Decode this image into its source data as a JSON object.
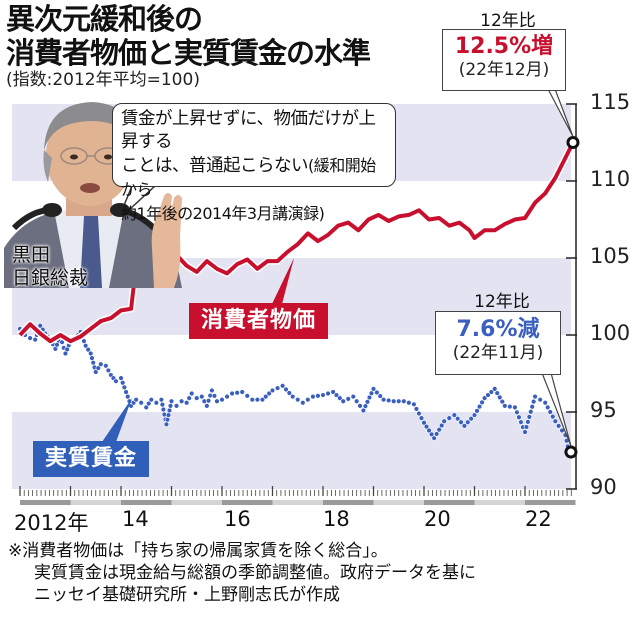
{
  "header": {
    "title_line1": "異次元緩和後の",
    "title_line2": "消費者物価と実質賃金の水準",
    "subtitle": "(指数:2012年平均=100)"
  },
  "quote": {
    "line1": "賃金が上昇せずに、物価だけが上昇する",
    "line2a": "ことは、普通起こらない",
    "line2b": "(緩和開始から",
    "line3": "約1年後の2014年3月講演録)"
  },
  "person": {
    "line1": "黒田",
    "line2": "日銀総裁"
  },
  "cpi_callout": {
    "caption": "12年比",
    "value": "12.5%増",
    "date": "(22年12月)"
  },
  "wage_callout": {
    "caption": "12年比",
    "value": "7.6%減",
    "date": "(22年11月)"
  },
  "series_labels": {
    "cpi": "消費者物価",
    "wage": "実質賃金"
  },
  "colors": {
    "cpi": "#c8102e",
    "wage": "#3a5fbf",
    "band": "#e3e3f2",
    "wage_label_bg": "#2f5fb8",
    "cpi_label_bg": "#c8102e"
  },
  "footnote": {
    "line1": "※消費者物価は「持ち家の帰属家賃を除く総合」。",
    "line2": "実質賃金は現金給与総額の季節調整値。政府データを基に",
    "line3": "ニッセイ基礎研究所・上野剛志氏が作成"
  },
  "chart_data": {
    "type": "line",
    "title": "異次元緩和後の消費者物価と実質賃金の水準",
    "subtitle": "(指数:2012年平均=100)",
    "xlabel": "",
    "ylabel": "",
    "ylim": [
      90,
      115
    ],
    "yticks": [
      90,
      95,
      100,
      105,
      110,
      115
    ],
    "xticks": [
      "2012年",
      "14",
      "16",
      "18",
      "20",
      "22"
    ],
    "xrange": [
      2012.0,
      2023.0
    ],
    "bands": [
      [
        90,
        95
      ],
      [
        100,
        105
      ],
      [
        110,
        115
      ]
    ],
    "series": [
      {
        "name": "消費者物価",
        "style": "solid-line",
        "x": [
          2012.0,
          2012.2,
          2012.4,
          2012.6,
          2012.8,
          2013.0,
          2013.2,
          2013.4,
          2013.6,
          2013.8,
          2014.0,
          2014.2,
          2014.3,
          2014.5,
          2014.7,
          2014.9,
          2015.1,
          2015.3,
          2015.5,
          2015.7,
          2015.9,
          2016.1,
          2016.3,
          2016.5,
          2016.7,
          2016.9,
          2017.1,
          2017.3,
          2017.5,
          2017.7,
          2017.9,
          2018.1,
          2018.3,
          2018.5,
          2018.7,
          2018.9,
          2019.1,
          2019.3,
          2019.5,
          2019.7,
          2019.9,
          2020.1,
          2020.3,
          2020.5,
          2020.7,
          2020.9,
          2021.0,
          2021.2,
          2021.4,
          2021.6,
          2021.8,
          2022.0,
          2022.2,
          2022.4,
          2022.6,
          2022.8,
          2022.95
        ],
        "values": [
          100.0,
          100.7,
          100.1,
          99.6,
          100.0,
          99.6,
          99.9,
          100.4,
          100.9,
          101.1,
          101.6,
          101.7,
          104.5,
          105.1,
          104.4,
          104.9,
          105.2,
          104.5,
          104.1,
          104.8,
          104.3,
          104.0,
          104.6,
          104.9,
          104.3,
          104.8,
          104.8,
          105.4,
          105.9,
          106.6,
          106.1,
          106.5,
          107.1,
          107.3,
          106.8,
          107.5,
          107.8,
          107.4,
          107.7,
          107.8,
          108.1,
          107.5,
          107.6,
          107.1,
          107.3,
          106.8,
          106.3,
          106.8,
          106.8,
          107.2,
          107.5,
          107.6,
          108.6,
          109.2,
          110.2,
          111.5,
          112.5
        ]
      },
      {
        "name": "実質賃金",
        "style": "dotted",
        "x": [
          2012.0,
          2012.1,
          2012.2,
          2012.3,
          2012.4,
          2012.5,
          2012.6,
          2012.7,
          2012.8,
          2012.9,
          2013.0,
          2013.1,
          2013.2,
          2013.3,
          2013.4,
          2013.5,
          2013.6,
          2013.7,
          2013.8,
          2013.9,
          2014.0,
          2014.1,
          2014.2,
          2014.3,
          2014.4,
          2014.5,
          2014.6,
          2014.7,
          2014.8,
          2014.9,
          2015.0,
          2015.1,
          2015.2,
          2015.3,
          2015.4,
          2015.5,
          2015.6,
          2015.7,
          2015.8,
          2015.9,
          2016.0,
          2016.2,
          2016.4,
          2016.6,
          2016.8,
          2017.0,
          2017.2,
          2017.4,
          2017.6,
          2017.8,
          2018.0,
          2018.2,
          2018.4,
          2018.6,
          2018.8,
          2019.0,
          2019.2,
          2019.4,
          2019.6,
          2019.8,
          2020.0,
          2020.2,
          2020.4,
          2020.6,
          2020.8,
          2021.0,
          2021.2,
          2021.4,
          2021.6,
          2021.8,
          2022.0,
          2022.2,
          2022.4,
          2022.6,
          2022.8,
          2022.87
        ],
        "values": [
          100.4,
          100.0,
          99.8,
          99.7,
          100.6,
          100.1,
          99.7,
          99.1,
          99.9,
          98.8,
          99.6,
          99.8,
          100.2,
          99.3,
          98.8,
          97.6,
          98.1,
          98.0,
          97.4,
          97.0,
          97.2,
          96.3,
          95.4,
          95.8,
          95.6,
          95.3,
          95.8,
          95.6,
          95.8,
          94.2,
          95.7,
          95.4,
          95.7,
          95.6,
          96.2,
          95.9,
          96.0,
          95.4,
          96.4,
          95.7,
          95.8,
          96.2,
          96.3,
          95.8,
          95.8,
          96.4,
          96.7,
          96.0,
          95.6,
          96.0,
          96.1,
          96.3,
          95.7,
          96.0,
          95.1,
          96.5,
          95.8,
          95.7,
          95.7,
          95.5,
          94.3,
          93.3,
          94.4,
          94.8,
          94.1,
          94.8,
          95.9,
          96.5,
          95.4,
          95.3,
          93.7,
          96.0,
          95.6,
          94.4,
          93.5,
          92.4
        ]
      }
    ],
    "annotations": [
      {
        "series": "消費者物価",
        "text": "12年比 12.5%増 (22年12月)"
      },
      {
        "series": "実質賃金",
        "text": "12年比 7.6%減 (22年11月)"
      },
      {
        "text": "賃金が上昇せずに、物価だけが上昇することは、普通起こらない(緩和開始から約1年後の2014年3月講演録)"
      }
    ]
  }
}
